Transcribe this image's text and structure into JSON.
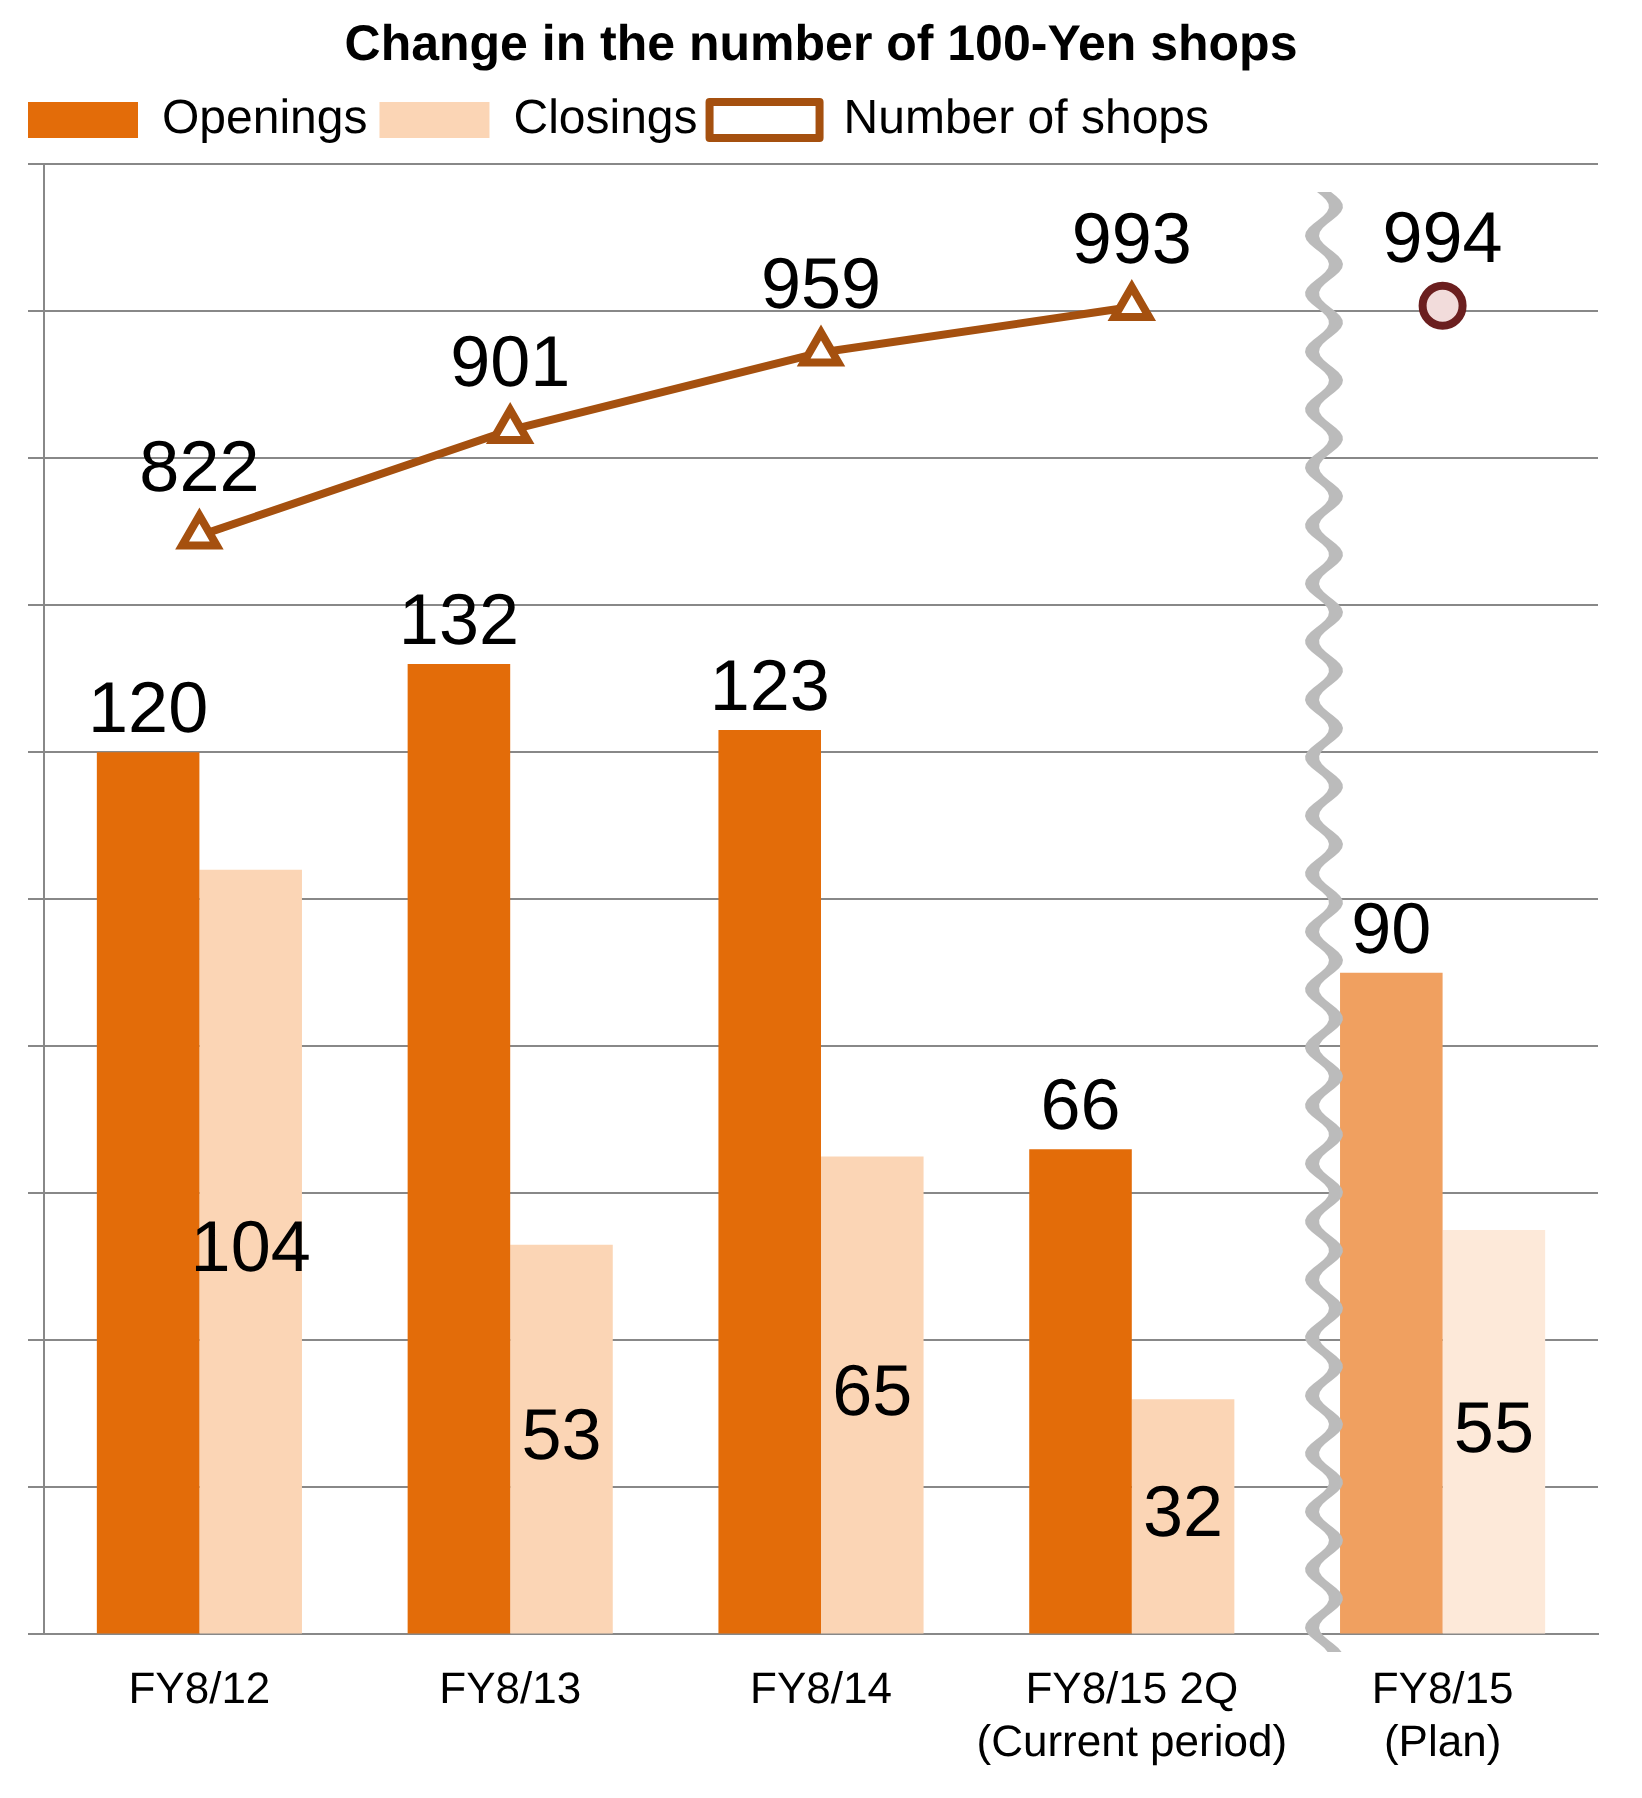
{
  "chart_data": {
    "type": "bar",
    "title": "Change in the number of 100-Yen shops",
    "categories": [
      "FY8/12",
      "FY8/13",
      "FY8/14",
      "FY8/15 2Q (Current period)",
      "FY8/15 (Plan)"
    ],
    "series": [
      {
        "name": "Openings",
        "colors": [
          "#e36c09",
          "#e36c09",
          "#e36c09",
          "#e36c09",
          "#f0a060"
        ],
        "values": [
          120,
          132,
          123,
          66,
          90
        ]
      },
      {
        "name": "Closings",
        "colors": [
          "#fbd5b5",
          "#fbd5b5",
          "#fbd5b5",
          "#fbd5b5",
          "#fde9d9"
        ],
        "values": [
          104,
          53,
          65,
          32,
          55
        ]
      },
      {
        "name": "Number of shops",
        "type": "line",
        "axis": "y2",
        "color": "#a5500f",
        "marker": "triangle",
        "values": [
          822,
          901,
          959,
          993,
          null
        ]
      },
      {
        "type": "scatter",
        "axis": "y2",
        "color": "#6b1f1f",
        "marker": "circle",
        "values": [
          null,
          null,
          null,
          null,
          994
        ]
      }
    ],
    "ylim": [
      0,
      200
    ],
    "yticks": [
      {
        "value": 0,
        "label": null
      },
      {
        "value": 20,
        "label": null
      },
      {
        "value": 40,
        "label": null
      },
      {
        "value": 60,
        "label": null
      },
      {
        "value": 80,
        "label": null
      },
      {
        "value": 100,
        "label": null
      },
      {
        "value": 120,
        "label": null
      },
      {
        "value": 140,
        "label": null
      },
      {
        "value": 160,
        "label": null
      },
      {
        "value": 180,
        "label": null
      },
      {
        "value": 200,
        "label": null
      }
    ],
    "y2lim": [
      0,
      1100
    ],
    "tick_labels": "x",
    "grid": "y",
    "legend": "top left",
    "data_labels": true
  }
}
